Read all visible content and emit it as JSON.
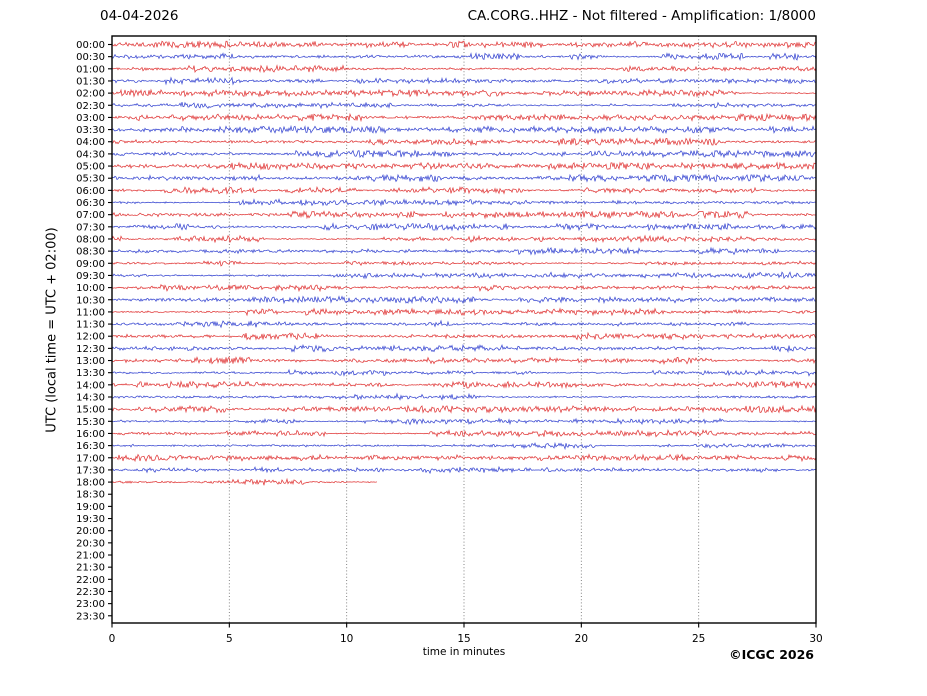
{
  "page": {
    "title_left": "04-04-2026",
    "title_right": "CA.CORG..HHZ - Not filtered - Amplification: 1/8000",
    "xlabel": "time in minutes",
    "ylabel": "UTC (local time = UTC + 02:00)",
    "copyright": "©ICGC 2026"
  },
  "chart_data": {
    "type": "line",
    "variant": "helicorder-seismogram",
    "title_left": "04-04-2026",
    "title_right": "CA.CORG..HHZ - Not filtered - Amplification: 1/8000",
    "xlabel": "time in minutes",
    "ylabel": "UTC (local time = UTC + 02:00)",
    "copyright": "©ICGC 2026",
    "xlim": [
      0,
      30
    ],
    "x_ticks": [
      0,
      5,
      10,
      15,
      20,
      25,
      30
    ],
    "grid": {
      "vertical_dotted_at_minutes": [
        5,
        10,
        15,
        20,
        25
      ]
    },
    "legend_position": "none",
    "colors": {
      "red_trace": "#dd2222",
      "blue_trace": "#2233cc",
      "grid": "#777777",
      "axis": "#000000",
      "background": "#ffffff"
    },
    "rows": [
      {
        "label": "00:00",
        "color": "red",
        "start_min": 0,
        "end_min": 30
      },
      {
        "label": "00:30",
        "color": "blue",
        "start_min": 0,
        "end_min": 30
      },
      {
        "label": "01:00",
        "color": "red",
        "start_min": 0,
        "end_min": 30
      },
      {
        "label": "01:30",
        "color": "blue",
        "start_min": 0,
        "end_min": 30
      },
      {
        "label": "02:00",
        "color": "red",
        "start_min": 0,
        "end_min": 30
      },
      {
        "label": "02:30",
        "color": "blue",
        "start_min": 0,
        "end_min": 30
      },
      {
        "label": "03:00",
        "color": "red",
        "start_min": 0,
        "end_min": 30
      },
      {
        "label": "03:30",
        "color": "blue",
        "start_min": 0,
        "end_min": 30
      },
      {
        "label": "04:00",
        "color": "red",
        "start_min": 0,
        "end_min": 30
      },
      {
        "label": "04:30",
        "color": "blue",
        "start_min": 0,
        "end_min": 30
      },
      {
        "label": "05:00",
        "color": "red",
        "start_min": 0,
        "end_min": 30
      },
      {
        "label": "05:30",
        "color": "blue",
        "start_min": 0,
        "end_min": 30
      },
      {
        "label": "06:00",
        "color": "red",
        "start_min": 0,
        "end_min": 30
      },
      {
        "label": "06:30",
        "color": "blue",
        "start_min": 0,
        "end_min": 30
      },
      {
        "label": "07:00",
        "color": "red",
        "start_min": 0,
        "end_min": 30
      },
      {
        "label": "07:30",
        "color": "blue",
        "start_min": 0,
        "end_min": 30
      },
      {
        "label": "08:00",
        "color": "red",
        "start_min": 0,
        "end_min": 30
      },
      {
        "label": "08:30",
        "color": "blue",
        "start_min": 0,
        "end_min": 30
      },
      {
        "label": "09:00",
        "color": "red",
        "start_min": 0,
        "end_min": 30
      },
      {
        "label": "09:30",
        "color": "blue",
        "start_min": 0,
        "end_min": 30
      },
      {
        "label": "10:00",
        "color": "red",
        "start_min": 0,
        "end_min": 30
      },
      {
        "label": "10:30",
        "color": "blue",
        "start_min": 0,
        "end_min": 30
      },
      {
        "label": "11:00",
        "color": "red",
        "start_min": 0,
        "end_min": 30
      },
      {
        "label": "11:30",
        "color": "blue",
        "start_min": 0,
        "end_min": 30
      },
      {
        "label": "12:00",
        "color": "red",
        "start_min": 0,
        "end_min": 30
      },
      {
        "label": "12:30",
        "color": "blue",
        "start_min": 0,
        "end_min": 30
      },
      {
        "label": "13:00",
        "color": "red",
        "start_min": 0,
        "end_min": 30
      },
      {
        "label": "13:30",
        "color": "blue",
        "start_min": 0,
        "end_min": 30
      },
      {
        "label": "14:00",
        "color": "red",
        "start_min": 0,
        "end_min": 30
      },
      {
        "label": "14:30",
        "color": "blue",
        "start_min": 0,
        "end_min": 30
      },
      {
        "label": "15:00",
        "color": "red",
        "start_min": 0,
        "end_min": 30
      },
      {
        "label": "15:30",
        "color": "blue",
        "start_min": 0,
        "end_min": 30
      },
      {
        "label": "16:00",
        "color": "red",
        "start_min": 0,
        "end_min": 30
      },
      {
        "label": "16:30",
        "color": "blue",
        "start_min": 0,
        "end_min": 30
      },
      {
        "label": "17:00",
        "color": "red",
        "start_min": 0,
        "end_min": 30
      },
      {
        "label": "17:30",
        "color": "blue",
        "start_min": 0,
        "end_min": 30
      },
      {
        "label": "18:00",
        "color": "red",
        "start_min": 0,
        "end_min": 11.3
      },
      {
        "label": "18:30",
        "color": null,
        "start_min": null,
        "end_min": null
      },
      {
        "label": "19:00",
        "color": null,
        "start_min": null,
        "end_min": null
      },
      {
        "label": "19:30",
        "color": null,
        "start_min": null,
        "end_min": null
      },
      {
        "label": "20:00",
        "color": null,
        "start_min": null,
        "end_min": null
      },
      {
        "label": "20:30",
        "color": null,
        "start_min": null,
        "end_min": null
      },
      {
        "label": "21:00",
        "color": null,
        "start_min": null,
        "end_min": null
      },
      {
        "label": "21:30",
        "color": null,
        "start_min": null,
        "end_min": null
      },
      {
        "label": "22:00",
        "color": null,
        "start_min": null,
        "end_min": null
      },
      {
        "label": "22:30",
        "color": null,
        "start_min": null,
        "end_min": null
      },
      {
        "label": "23:00",
        "color": null,
        "start_min": null,
        "end_min": null
      },
      {
        "label": "23:30",
        "color": null,
        "start_min": null,
        "end_min": null
      }
    ]
  }
}
